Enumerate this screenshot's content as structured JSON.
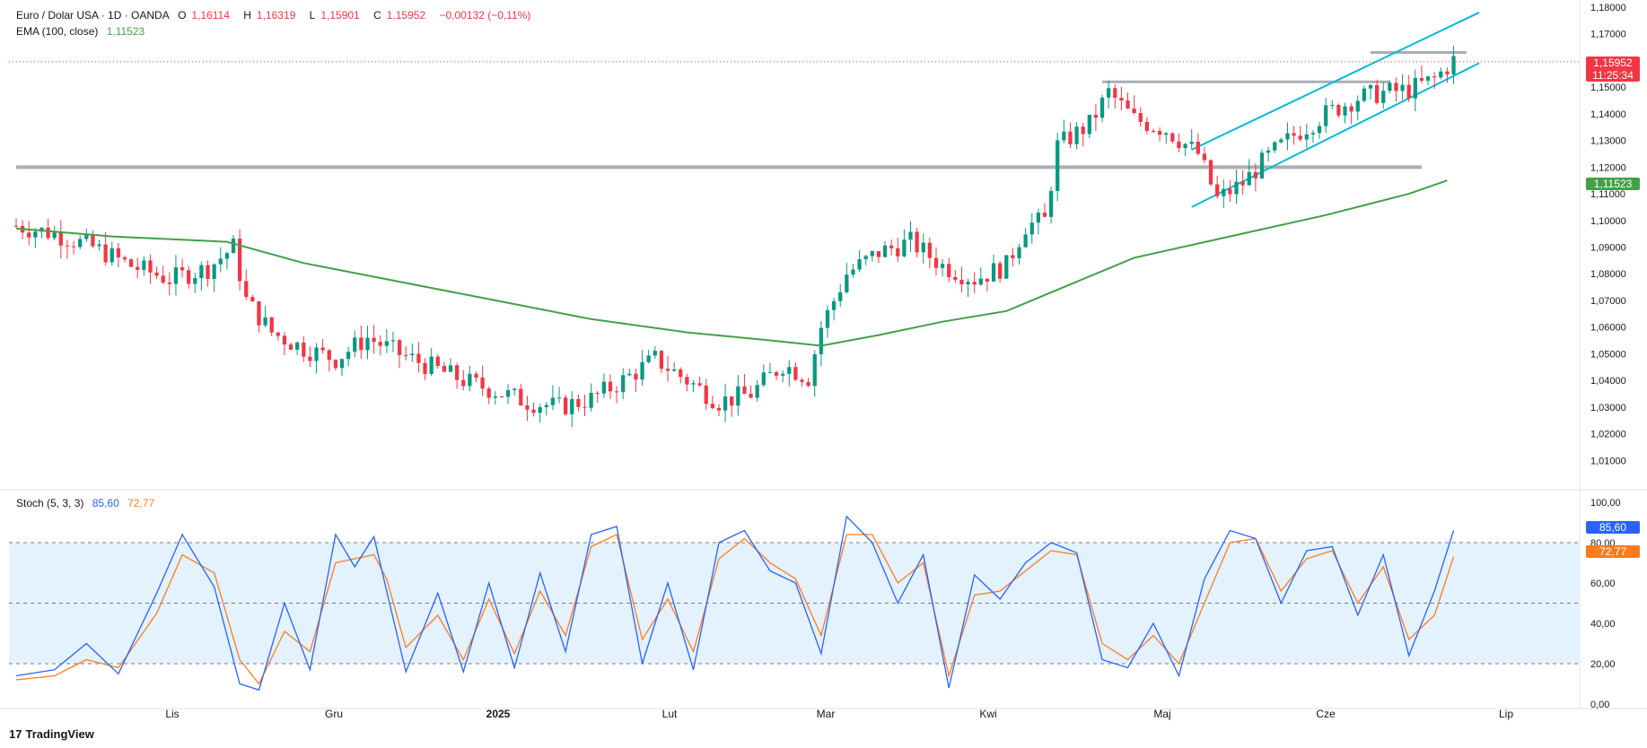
{
  "header": {
    "symbol": "Euro / Dolar USA · 1D · OANDA",
    "open_label": "O",
    "open": "1,16114",
    "high_label": "H",
    "high": "1,16319",
    "low_label": "L",
    "low": "1,15901",
    "close_label": "C",
    "close": "1,15952",
    "change": "−0,00132 (−0,11%)",
    "ema_label": "EMA (100, close)",
    "ema_value": "1,11523"
  },
  "stoch_header": {
    "label": "Stoch (5, 3, 3)",
    "k_value": "85,60",
    "d_value": "72,77"
  },
  "badges": {
    "price": "1,15952",
    "countdown": "11:25:34",
    "ema": "1,11523",
    "k": "85,60",
    "d": "72,77"
  },
  "colors": {
    "up": "#089981",
    "down": "#f23645",
    "ema": "#43a047",
    "channel": "#00bcd4",
    "stoch_k": "#2962ff",
    "stoch_d": "#ff7a1f",
    "band": "#e3f2fd"
  },
  "chart_data": [
    {
      "type": "candlestick",
      "ylim": [
        1.0,
        1.18
      ],
      "y_ticks": [
        "1,18000",
        "1,17000",
        "1,16000",
        "1,15000",
        "1,14000",
        "1,13000",
        "1,12000",
        "1,11000",
        "1,10000",
        "1,09000",
        "1,08000",
        "1,07000",
        "1,06000",
        "1,05000",
        "1,04000",
        "1,03000",
        "1,02000",
        "1,01000"
      ],
      "x_labels": [
        "Lis",
        "Gru",
        "2025",
        "Lut",
        "Mar",
        "Kwi",
        "Maj",
        "Cze",
        "Lip"
      ],
      "close_path": [
        [
          0,
          1.098
        ],
        [
          6,
          1.095
        ],
        [
          12,
          1.09
        ],
        [
          18,
          1.083
        ],
        [
          24,
          1.078
        ],
        [
          30,
          1.082
        ],
        [
          34,
          1.09
        ],
        [
          36,
          1.07
        ],
        [
          40,
          1.058
        ],
        [
          45,
          1.052
        ],
        [
          50,
          1.048
        ],
        [
          55,
          1.056
        ],
        [
          60,
          1.05
        ],
        [
          65,
          1.045
        ],
        [
          70,
          1.04
        ],
        [
          75,
          1.036
        ],
        [
          80,
          1.032
        ],
        [
          85,
          1.03
        ],
        [
          90,
          1.033
        ],
        [
          95,
          1.04
        ],
        [
          100,
          1.048
        ],
        [
          105,
          1.04
        ],
        [
          110,
          1.032
        ],
        [
          115,
          1.035
        ],
        [
          120,
          1.046
        ],
        [
          124,
          1.041
        ],
        [
          126,
          1.06
        ],
        [
          130,
          1.08
        ],
        [
          135,
          1.088
        ],
        [
          140,
          1.092
        ],
        [
          145,
          1.083
        ],
        [
          150,
          1.078
        ],
        [
          155,
          1.083
        ],
        [
          158,
          1.098
        ],
        [
          161,
          1.1
        ],
        [
          163,
          1.128
        ],
        [
          168,
          1.136
        ],
        [
          171,
          1.148
        ],
        [
          175,
          1.138
        ],
        [
          180,
          1.134
        ],
        [
          185,
          1.125
        ],
        [
          188,
          1.108
        ],
        [
          192,
          1.114
        ],
        [
          196,
          1.124
        ],
        [
          200,
          1.132
        ],
        [
          205,
          1.14
        ],
        [
          210,
          1.146
        ],
        [
          214,
          1.148
        ],
        [
          218,
          1.149
        ],
        [
          222,
          1.153
        ],
        [
          225,
          1.16
        ]
      ],
      "ema100": [
        [
          0,
          1.097
        ],
        [
          15,
          1.094
        ],
        [
          33,
          1.092
        ],
        [
          45,
          1.084
        ],
        [
          60,
          1.077
        ],
        [
          75,
          1.07
        ],
        [
          90,
          1.063
        ],
        [
          105,
          1.058
        ],
        [
          118,
          1.055
        ],
        [
          126,
          1.053
        ],
        [
          135,
          1.057
        ],
        [
          145,
          1.062
        ],
        [
          155,
          1.066
        ],
        [
          163,
          1.074
        ],
        [
          175,
          1.086
        ],
        [
          190,
          1.094
        ],
        [
          205,
          1.102
        ],
        [
          218,
          1.11
        ],
        [
          224,
          1.115
        ]
      ],
      "horizontal_levels": [
        {
          "y": 1.12,
          "from": 0,
          "to": 220
        },
        {
          "y": 1.152,
          "from": 170,
          "to": 215
        },
        {
          "y": 1.163,
          "from": 212,
          "to": 227
        }
      ],
      "channel_lines": [
        {
          "x1": 184,
          "y1": 1.105,
          "x2": 229,
          "y2": 1.159
        },
        {
          "x1": 184,
          "y1": 1.1265,
          "x2": 229,
          "y2": 1.178
        }
      ]
    },
    {
      "type": "line",
      "name": "Stoch (5, 3, 3)",
      "ylim": [
        0,
        100
      ],
      "y_ticks": [
        "100,00",
        "80,00",
        "60,00",
        "40,00",
        "20,00",
        "0,00"
      ],
      "bands": [
        20,
        50,
        80
      ],
      "k_path": [
        [
          0,
          14
        ],
        [
          6,
          17
        ],
        [
          11,
          30
        ],
        [
          16,
          15
        ],
        [
          22,
          55
        ],
        [
          26,
          84
        ],
        [
          31,
          58
        ],
        [
          35,
          10
        ],
        [
          38,
          7
        ],
        [
          42,
          50
        ],
        [
          46,
          17
        ],
        [
          50,
          84
        ],
        [
          53,
          68
        ],
        [
          56,
          83
        ],
        [
          58,
          56
        ],
        [
          61,
          16
        ],
        [
          66,
          55
        ],
        [
          70,
          16
        ],
        [
          74,
          60
        ],
        [
          78,
          18
        ],
        [
          82,
          65
        ],
        [
          86,
          26
        ],
        [
          90,
          84
        ],
        [
          94,
          88
        ],
        [
          98,
          20
        ],
        [
          102,
          60
        ],
        [
          106,
          17
        ],
        [
          110,
          80
        ],
        [
          114,
          86
        ],
        [
          118,
          66
        ],
        [
          122,
          60
        ],
        [
          126,
          25
        ],
        [
          130,
          93
        ],
        [
          134,
          80
        ],
        [
          138,
          50
        ],
        [
          142,
          74
        ],
        [
          146,
          8
        ],
        [
          150,
          64
        ],
        [
          154,
          52
        ],
        [
          158,
          70
        ],
        [
          162,
          80
        ],
        [
          166,
          75
        ],
        [
          170,
          22
        ],
        [
          174,
          18
        ],
        [
          178,
          40
        ],
        [
          182,
          14
        ],
        [
          186,
          62
        ],
        [
          190,
          86
        ],
        [
          194,
          82
        ],
        [
          198,
          50
        ],
        [
          202,
          76
        ],
        [
          206,
          78
        ],
        [
          210,
          44
        ],
        [
          214,
          74
        ],
        [
          218,
          24
        ],
        [
          222,
          56
        ],
        [
          225,
          86
        ]
      ],
      "d_path": [
        [
          0,
          12
        ],
        [
          6,
          14
        ],
        [
          11,
          22
        ],
        [
          16,
          18
        ],
        [
          22,
          45
        ],
        [
          26,
          74
        ],
        [
          31,
          65
        ],
        [
          35,
          22
        ],
        [
          38,
          10
        ],
        [
          42,
          36
        ],
        [
          46,
          26
        ],
        [
          50,
          70
        ],
        [
          53,
          72
        ],
        [
          56,
          74
        ],
        [
          58,
          62
        ],
        [
          61,
          28
        ],
        [
          66,
          44
        ],
        [
          70,
          22
        ],
        [
          74,
          52
        ],
        [
          78,
          25
        ],
        [
          82,
          56
        ],
        [
          86,
          34
        ],
        [
          90,
          78
        ],
        [
          94,
          84
        ],
        [
          98,
          32
        ],
        [
          102,
          52
        ],
        [
          106,
          26
        ],
        [
          110,
          72
        ],
        [
          114,
          82
        ],
        [
          118,
          70
        ],
        [
          122,
          62
        ],
        [
          126,
          34
        ],
        [
          130,
          84
        ],
        [
          134,
          84
        ],
        [
          138,
          60
        ],
        [
          142,
          70
        ],
        [
          146,
          14
        ],
        [
          150,
          54
        ],
        [
          154,
          56
        ],
        [
          158,
          66
        ],
        [
          162,
          76
        ],
        [
          166,
          74
        ],
        [
          170,
          30
        ],
        [
          174,
          22
        ],
        [
          178,
          34
        ],
        [
          182,
          20
        ],
        [
          186,
          50
        ],
        [
          190,
          80
        ],
        [
          194,
          82
        ],
        [
          198,
          56
        ],
        [
          202,
          72
        ],
        [
          206,
          76
        ],
        [
          210,
          50
        ],
        [
          214,
          68
        ],
        [
          218,
          32
        ],
        [
          222,
          44
        ],
        [
          225,
          73
        ]
      ]
    }
  ]
}
